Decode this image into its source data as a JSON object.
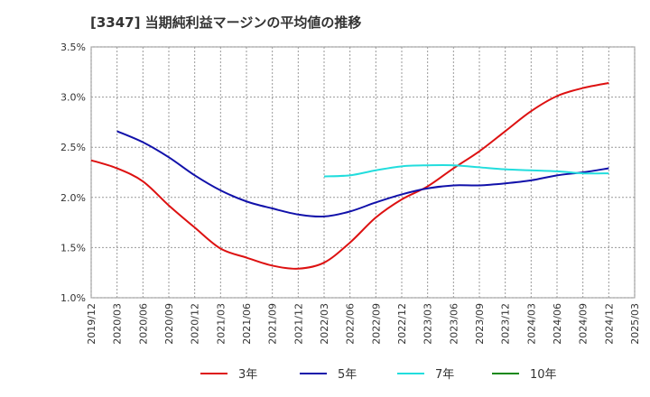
{
  "chart_data": {
    "type": "line",
    "title": "[3347]  当期純利益マージンの平均値の推移",
    "xlabel": "",
    "ylabel": "",
    "ylim": [
      1.0,
      3.5
    ],
    "y_ticks": [
      "1.0%",
      "1.5%",
      "2.0%",
      "2.5%",
      "3.0%",
      "3.5%"
    ],
    "x_ticks": [
      "2019/12",
      "2020/03",
      "2020/06",
      "2020/09",
      "2020/12",
      "2021/03",
      "2021/06",
      "2021/09",
      "2021/12",
      "2022/03",
      "2022/06",
      "2022/09",
      "2022/12",
      "2023/03",
      "2023/06",
      "2023/09",
      "2023/12",
      "2024/03",
      "2024/06",
      "2024/09",
      "2024/12",
      "2025/03"
    ],
    "grid": true,
    "legend": "bottom",
    "series": [
      {
        "name": "3年",
        "color": "#dd1111",
        "points": [
          [
            "2019/12",
            2.37
          ],
          [
            "2020/03",
            2.29
          ],
          [
            "2020/06",
            2.16
          ],
          [
            "2020/09",
            1.92
          ],
          [
            "2020/12",
            1.7
          ],
          [
            "2021/03",
            1.49
          ],
          [
            "2021/06",
            1.4
          ],
          [
            "2021/09",
            1.32
          ],
          [
            "2021/12",
            1.29
          ],
          [
            "2022/03",
            1.35
          ],
          [
            "2022/06",
            1.55
          ],
          [
            "2022/09",
            1.8
          ],
          [
            "2022/12",
            1.98
          ],
          [
            "2023/03",
            2.11
          ],
          [
            "2023/06",
            2.29
          ],
          [
            "2023/09",
            2.46
          ],
          [
            "2023/12",
            2.66
          ],
          [
            "2024/03",
            2.86
          ],
          [
            "2024/06",
            3.01
          ],
          [
            "2024/09",
            3.09
          ],
          [
            "2024/12",
            3.14
          ]
        ]
      },
      {
        "name": "5年",
        "color": "#1111aa",
        "points": [
          [
            "2020/03",
            2.66
          ],
          [
            "2020/06",
            2.55
          ],
          [
            "2020/09",
            2.4
          ],
          [
            "2020/12",
            2.22
          ],
          [
            "2021/03",
            2.07
          ],
          [
            "2021/06",
            1.96
          ],
          [
            "2021/09",
            1.89
          ],
          [
            "2021/12",
            1.83
          ],
          [
            "2022/03",
            1.81
          ],
          [
            "2022/06",
            1.86
          ],
          [
            "2022/09",
            1.95
          ],
          [
            "2022/12",
            2.03
          ],
          [
            "2023/03",
            2.09
          ],
          [
            "2023/06",
            2.12
          ],
          [
            "2023/09",
            2.12
          ],
          [
            "2023/12",
            2.14
          ],
          [
            "2024/03",
            2.17
          ],
          [
            "2024/06",
            2.22
          ],
          [
            "2024/09",
            2.25
          ],
          [
            "2024/12",
            2.29
          ]
        ]
      },
      {
        "name": "7年",
        "color": "#22dddd",
        "points": [
          [
            "2022/03",
            2.21
          ],
          [
            "2022/06",
            2.22
          ],
          [
            "2022/09",
            2.27
          ],
          [
            "2022/12",
            2.31
          ],
          [
            "2023/03",
            2.32
          ],
          [
            "2023/06",
            2.32
          ],
          [
            "2023/09",
            2.3
          ],
          [
            "2023/12",
            2.28
          ],
          [
            "2024/03",
            2.27
          ],
          [
            "2024/06",
            2.26
          ],
          [
            "2024/09",
            2.24
          ],
          [
            "2024/12",
            2.24
          ]
        ]
      },
      {
        "name": "10年",
        "color": "#118811",
        "points": []
      }
    ]
  }
}
